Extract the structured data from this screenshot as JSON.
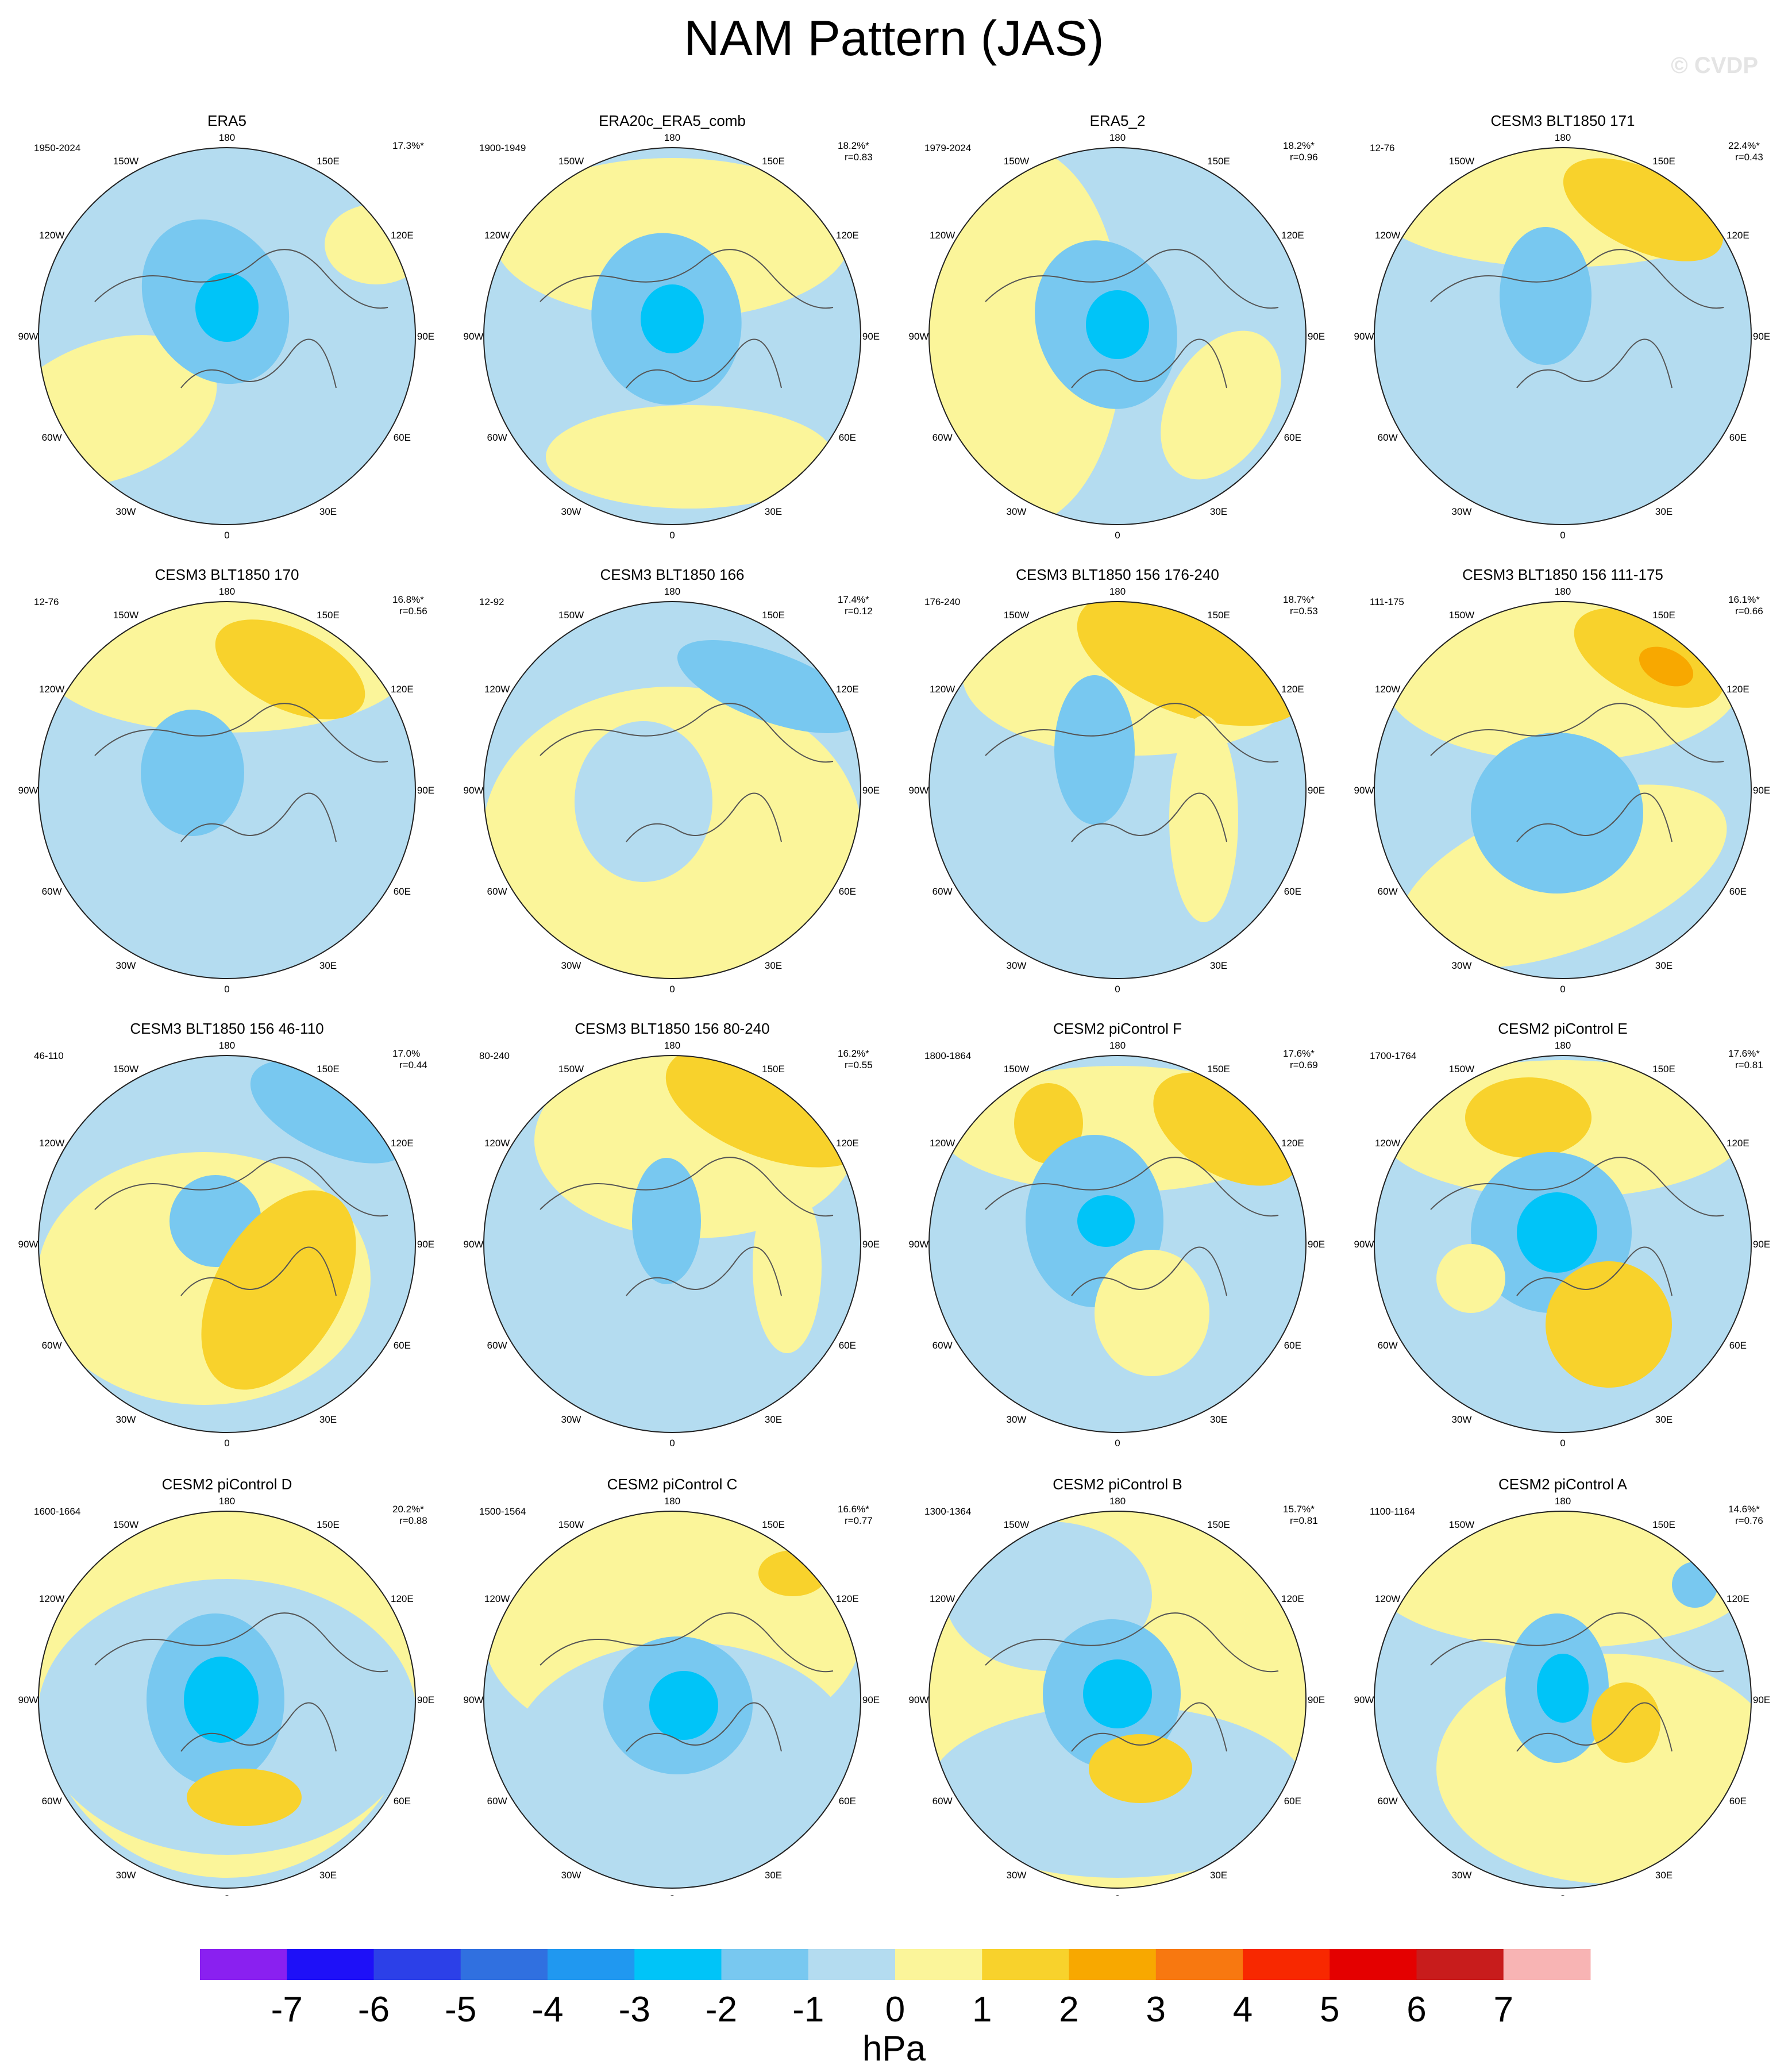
{
  "title": "NAM Pattern (JAS)",
  "watermark": "© CVDP",
  "chart_data": {
    "type": "polar-map-panels",
    "projection": "north polar stereographic",
    "variable": "sea level pressure anomaly",
    "units": "hPa",
    "longitude_labels": [
      "180",
      "150E",
      "120E",
      "90E",
      "60E",
      "30E",
      "0",
      "30W",
      "60W",
      "90W",
      "120W",
      "150W"
    ],
    "panels": [
      {
        "name": "ERA5",
        "period": "1950-2024",
        "pct": "17.3%*",
        "r": ""
      },
      {
        "name": "ERA20c_ERA5_comb",
        "period": "1900-1949",
        "pct": "18.2%*",
        "r": "r=0.83"
      },
      {
        "name": "ERA5_2",
        "period": "1979-2024",
        "pct": "18.2%*",
        "r": "r=0.96"
      },
      {
        "name": "CESM3 BLT1850 171",
        "period": "12-76",
        "pct": "22.4%*",
        "r": "r=0.43"
      },
      {
        "name": "CESM3 BLT1850 170",
        "period": "12-76",
        "pct": "16.8%*",
        "r": "r=0.56"
      },
      {
        "name": "CESM3 BLT1850 166",
        "period": "12-92",
        "pct": "17.4%*",
        "r": "r=0.12"
      },
      {
        "name": "CESM3 BLT1850 156 176-240",
        "period": "176-240",
        "pct": "18.7%*",
        "r": "r=0.53"
      },
      {
        "name": "CESM3 BLT1850 156 111-175",
        "period": "111-175",
        "pct": "16.1%*",
        "r": "r=0.66"
      },
      {
        "name": "CESM3 BLT1850 156 46-110",
        "period": "46-110",
        "pct": "17.0%",
        "r": "r=0.44"
      },
      {
        "name": "CESM3 BLT1850 156 80-240",
        "period": "80-240",
        "pct": "16.2%*",
        "r": "r=0.55"
      },
      {
        "name": "CESM2 piControl F",
        "period": "1800-1864",
        "pct": "17.6%*",
        "r": "r=0.69"
      },
      {
        "name": "CESM2 piControl E",
        "period": "1700-1764",
        "pct": "17.6%*",
        "r": "r=0.81"
      },
      {
        "name": "CESM2 piControl D",
        "period": "1600-1664",
        "pct": "20.2%*",
        "r": "r=0.88"
      },
      {
        "name": "CESM2 piControl C",
        "period": "1500-1564",
        "pct": "16.6%*",
        "r": "r=0.77"
      },
      {
        "name": "CESM2 piControl B",
        "period": "1300-1364",
        "pct": "15.7%*",
        "r": "r=0.81"
      },
      {
        "name": "CESM2 piControl A",
        "period": "1100-1164",
        "pct": "14.6%*",
        "r": "r=0.76"
      }
    ],
    "colorbar": {
      "levels": [
        "-7",
        "-6",
        "-5",
        "-4",
        "-3",
        "-2",
        "-1",
        "0",
        "1",
        "2",
        "3",
        "4",
        "5",
        "6",
        "7"
      ],
      "colors": [
        "#8a20f0",
        "#1e10f8",
        "#2c40e8",
        "#3070e0",
        "#2098f0",
        "#00c4f8",
        "#78c8f0",
        "#b4dcf0",
        "#fbf59a",
        "#f8d22c",
        "#f8a800",
        "#f87810",
        "#f82800",
        "#e40000",
        "#c81c1c",
        "#f8b4b4"
      ],
      "label": "hPa"
    }
  }
}
